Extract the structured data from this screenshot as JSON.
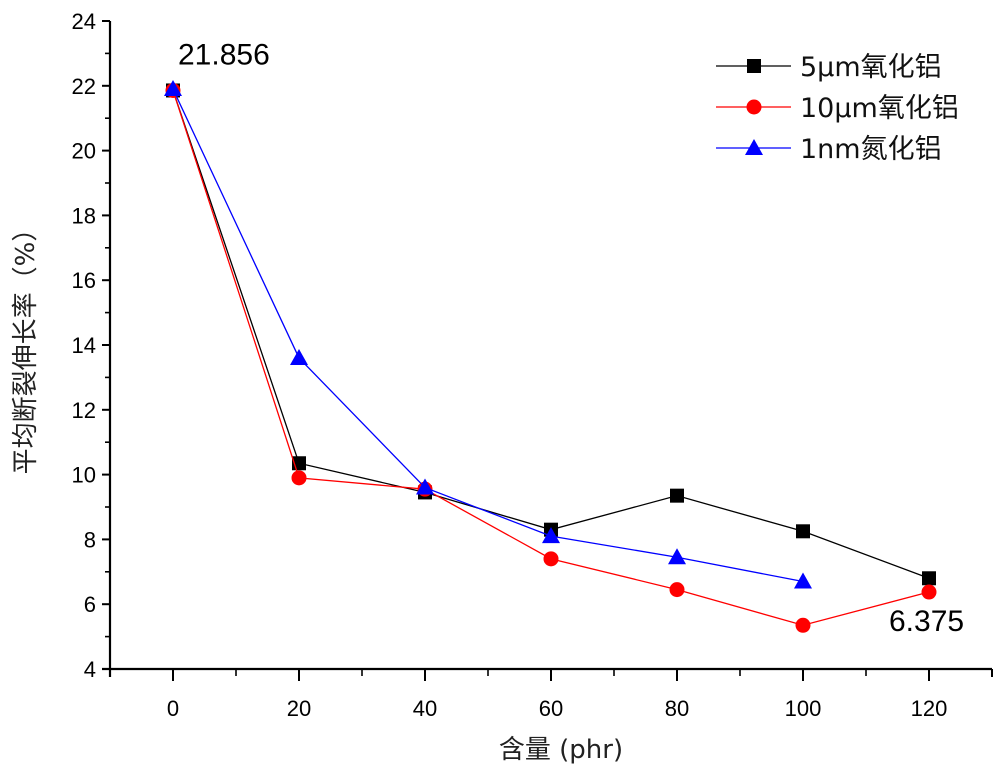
{
  "chart_data": {
    "type": "line",
    "title": "",
    "xlabel": "含量 (phr)",
    "ylabel": "平均断裂伸长率（%）",
    "xlim": [
      -10,
      130
    ],
    "ylim": [
      4,
      24
    ],
    "x_ticks": [
      0,
      20,
      40,
      60,
      80,
      100,
      120
    ],
    "x_minor_step": 10,
    "y_ticks": [
      4,
      6,
      8,
      10,
      12,
      14,
      16,
      18,
      20,
      22,
      24
    ],
    "y_minor_step": 1,
    "grid": false,
    "legend_position": "top-right",
    "series": [
      {
        "name": "5μm氧化铝",
        "color": "#000000",
        "marker": "square",
        "x": [
          0,
          20,
          40,
          60,
          80,
          100,
          120
        ],
        "values": [
          21.856,
          10.35,
          9.45,
          8.3,
          9.35,
          8.25,
          6.8
        ]
      },
      {
        "name": "10μm氧化铝",
        "color": "#ff0000",
        "marker": "circle",
        "x": [
          0,
          20,
          40,
          60,
          80,
          100,
          120
        ],
        "values": [
          21.856,
          9.9,
          9.55,
          7.4,
          6.45,
          5.35,
          6.375
        ]
      },
      {
        "name": "1nm氮化铝",
        "color": "#0000ff",
        "marker": "triangle",
        "x": [
          0,
          20,
          40,
          60,
          80,
          100
        ],
        "values": [
          21.9,
          13.6,
          9.6,
          8.1,
          7.45,
          6.7
        ]
      }
    ],
    "annotations": [
      {
        "text": "21.856",
        "x": 0,
        "y": 21.856
      },
      {
        "text": "6.375",
        "x": 120,
        "y": 6.375
      }
    ]
  }
}
